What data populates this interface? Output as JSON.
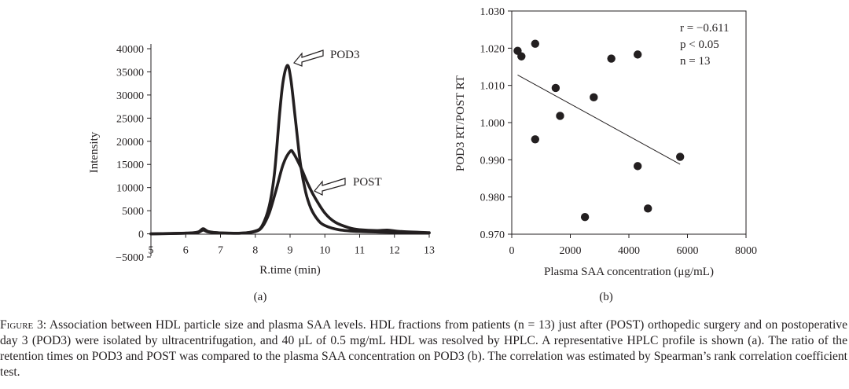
{
  "chart_data": [
    {
      "type": "line",
      "panel": "(a)",
      "xlabel": "R.time (min)",
      "ylabel": "Intensity",
      "xlim": [
        5,
        13
      ],
      "ylim": [
        -5000,
        40000
      ],
      "xticks": [
        "5",
        "6",
        "7",
        "8",
        "9",
        "10",
        "11",
        "12",
        "13"
      ],
      "yticks": [
        "−5000",
        "0",
        "5000",
        "10000",
        "15000",
        "20000",
        "25000",
        "30000",
        "35000",
        "40000"
      ],
      "series": [
        {
          "name": "POD3",
          "x": [
            5.0,
            6.0,
            6.35,
            6.5,
            6.65,
            7.0,
            7.6,
            8.0,
            8.2,
            8.4,
            8.55,
            8.7,
            8.8,
            8.92,
            9.02,
            9.15,
            9.3,
            9.45,
            9.6,
            9.8,
            10.0,
            10.4,
            11.0,
            12.0,
            13.0
          ],
          "y": [
            0,
            150,
            400,
            1100,
            500,
            200,
            150,
            600,
            1800,
            6000,
            13000,
            26000,
            33000,
            36400,
            33500,
            25000,
            15000,
            9000,
            5500,
            3000,
            1800,
            900,
            500,
            300,
            200
          ]
        },
        {
          "name": "POST",
          "x": [
            5.0,
            6.0,
            6.35,
            6.5,
            6.65,
            7.0,
            7.6,
            8.0,
            8.2,
            8.4,
            8.6,
            8.8,
            9.0,
            9.1,
            9.3,
            9.5,
            9.7,
            10.0,
            10.3,
            10.7,
            11.0,
            11.5,
            11.8,
            12.2,
            13.0
          ],
          "y": [
            0,
            150,
            300,
            800,
            400,
            200,
            150,
            500,
            1500,
            4500,
            9500,
            15000,
            17800,
            17400,
            14500,
            11000,
            8000,
            4500,
            2500,
            1300,
            900,
            700,
            800,
            500,
            250
          ]
        }
      ],
      "annotations": [
        "POD3",
        "POST"
      ]
    },
    {
      "type": "scatter",
      "panel": "(b)",
      "xlabel": "Plasma SAA concentration (μg/mL)",
      "ylabel": "POD3 RT/POST RT",
      "xlim": [
        0,
        8000
      ],
      "ylim": [
        0.97,
        1.03
      ],
      "xticks": [
        "0",
        "2000",
        "4000",
        "6000",
        "8000"
      ],
      "yticks": [
        "0.970",
        "0.980",
        "0.990",
        "1.000",
        "1.010",
        "1.020",
        "1.030"
      ],
      "points": [
        {
          "x": 200,
          "y": 1.0193
        },
        {
          "x": 330,
          "y": 1.0178
        },
        {
          "x": 800,
          "y": 1.0212
        },
        {
          "x": 800,
          "y": 0.9955
        },
        {
          "x": 1500,
          "y": 1.0093
        },
        {
          "x": 1650,
          "y": 1.0018
        },
        {
          "x": 2500,
          "y": 0.9746
        },
        {
          "x": 2800,
          "y": 1.0068
        },
        {
          "x": 3400,
          "y": 1.0172
        },
        {
          "x": 4300,
          "y": 1.0183
        },
        {
          "x": 4300,
          "y": 0.9883
        },
        {
          "x": 4650,
          "y": 0.9769
        },
        {
          "x": 5750,
          "y": 0.9908
        }
      ],
      "trendline": {
        "x": [
          200,
          5750
        ],
        "y": [
          1.0128,
          0.9888
        ]
      },
      "stats": [
        "r = −0.611",
        "p < 0.05",
        "n = 13"
      ]
    }
  ],
  "figure": {
    "panel_a_label": "(a)",
    "panel_b_label": "(b)",
    "caption_label": "Figure 3:",
    "caption_text": " Association between HDL particle size and plasma SAA levels. HDL fractions from patients (n = 13) just after (POST) orthopedic surgery and on postoperative day 3 (POD3) were isolated by ultracentrifugation, and 40 μL of 0.5 mg/mL HDL was resolved by HPLC. A representative HPLC profile is shown (a). The ratio of the retention times on POD3 and POST was compared to the plasma SAA concentration on POD3 (b). The correlation was estimated by Spearman’s rank correlation coefficient test."
  }
}
